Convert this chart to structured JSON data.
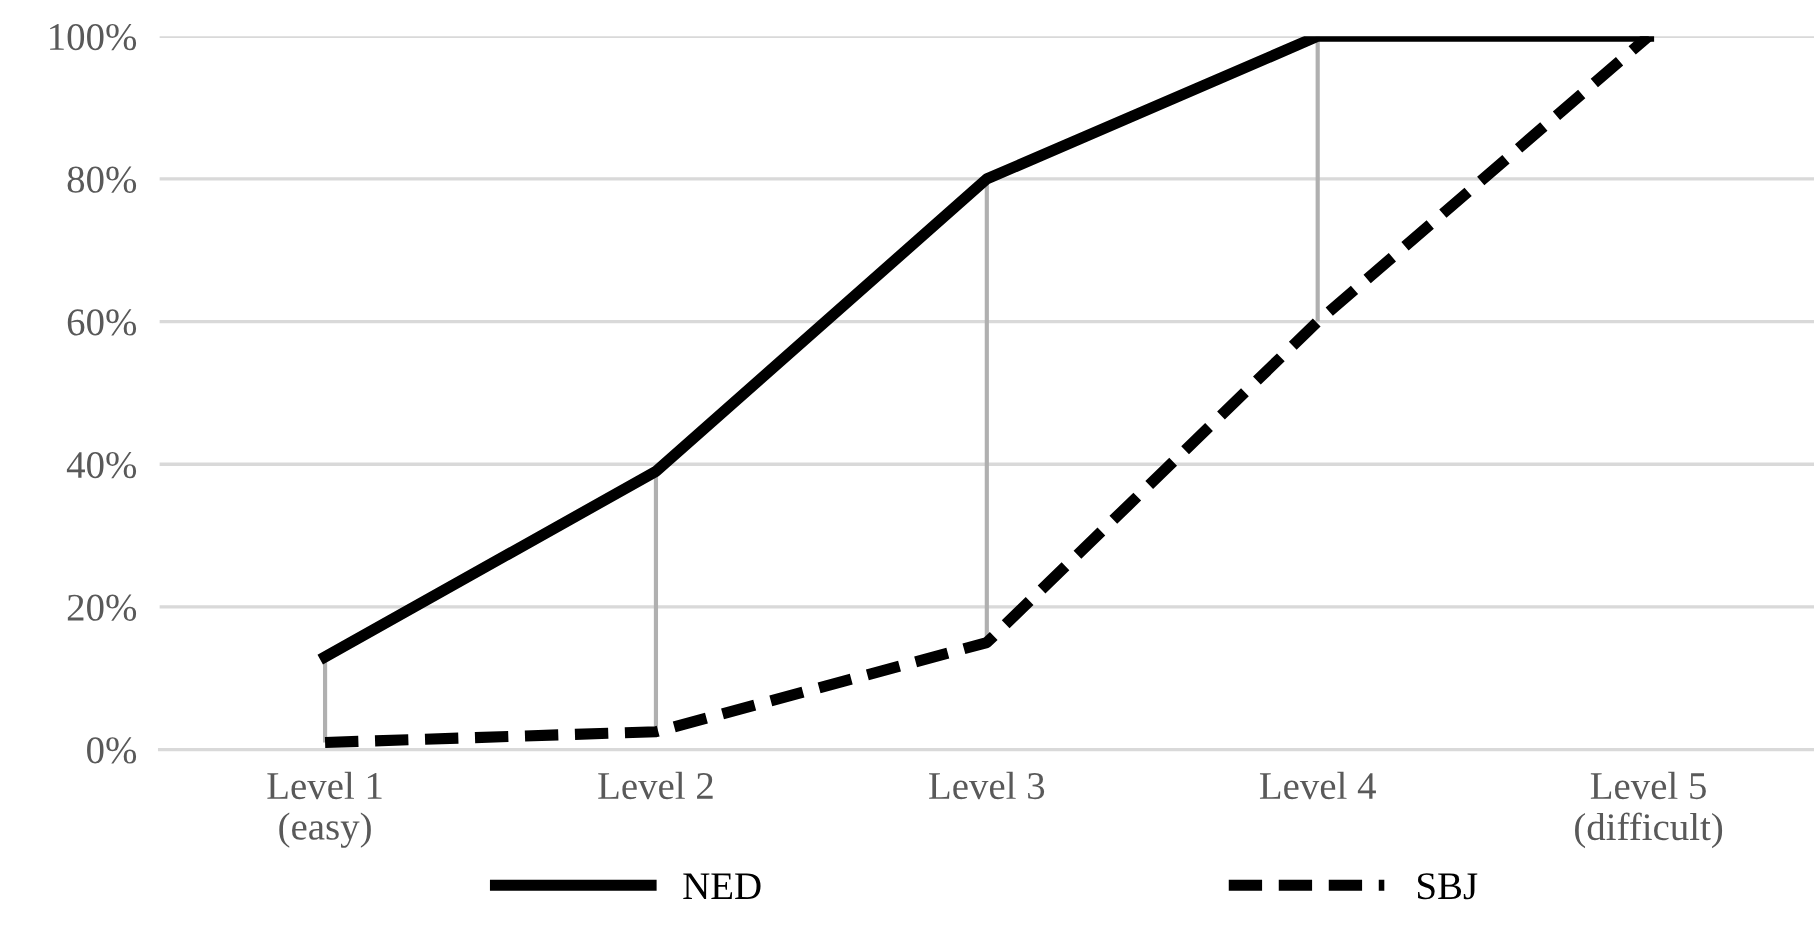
{
  "chart_data": {
    "type": "line",
    "categories": [
      "Level 1\n(easy)",
      "Level 2",
      "Level 3",
      "Level 4",
      "Level 5\n(difficult)"
    ],
    "series": [
      {
        "name": "NED",
        "color": "#000000",
        "line_style": "solid",
        "values": [
          13,
          39,
          80,
          100,
          100
        ]
      },
      {
        "name": "SBJ",
        "color": "#000000",
        "line_style": "dashed",
        "values": [
          1,
          2.5,
          15,
          60,
          100
        ],
        "errors": [
          [
            1,
            13
          ],
          [
            2.5,
            39
          ],
          [
            15,
            80
          ],
          [
            60,
            100
          ],
          [
            100,
            100
          ]
        ]
      }
    ],
    "ylim": [
      0,
      100
    ],
    "yticks": [
      {
        "value": 0,
        "label": "0%"
      },
      {
        "value": 20,
        "label": "20%"
      },
      {
        "value": 40,
        "label": "40%"
      },
      {
        "value": 60,
        "label": "60%"
      },
      {
        "value": 80,
        "label": "80%"
      },
      {
        "value": 100,
        "label": "100%"
      }
    ],
    "grid": "y",
    "legend": "bottom",
    "marker": "none"
  }
}
